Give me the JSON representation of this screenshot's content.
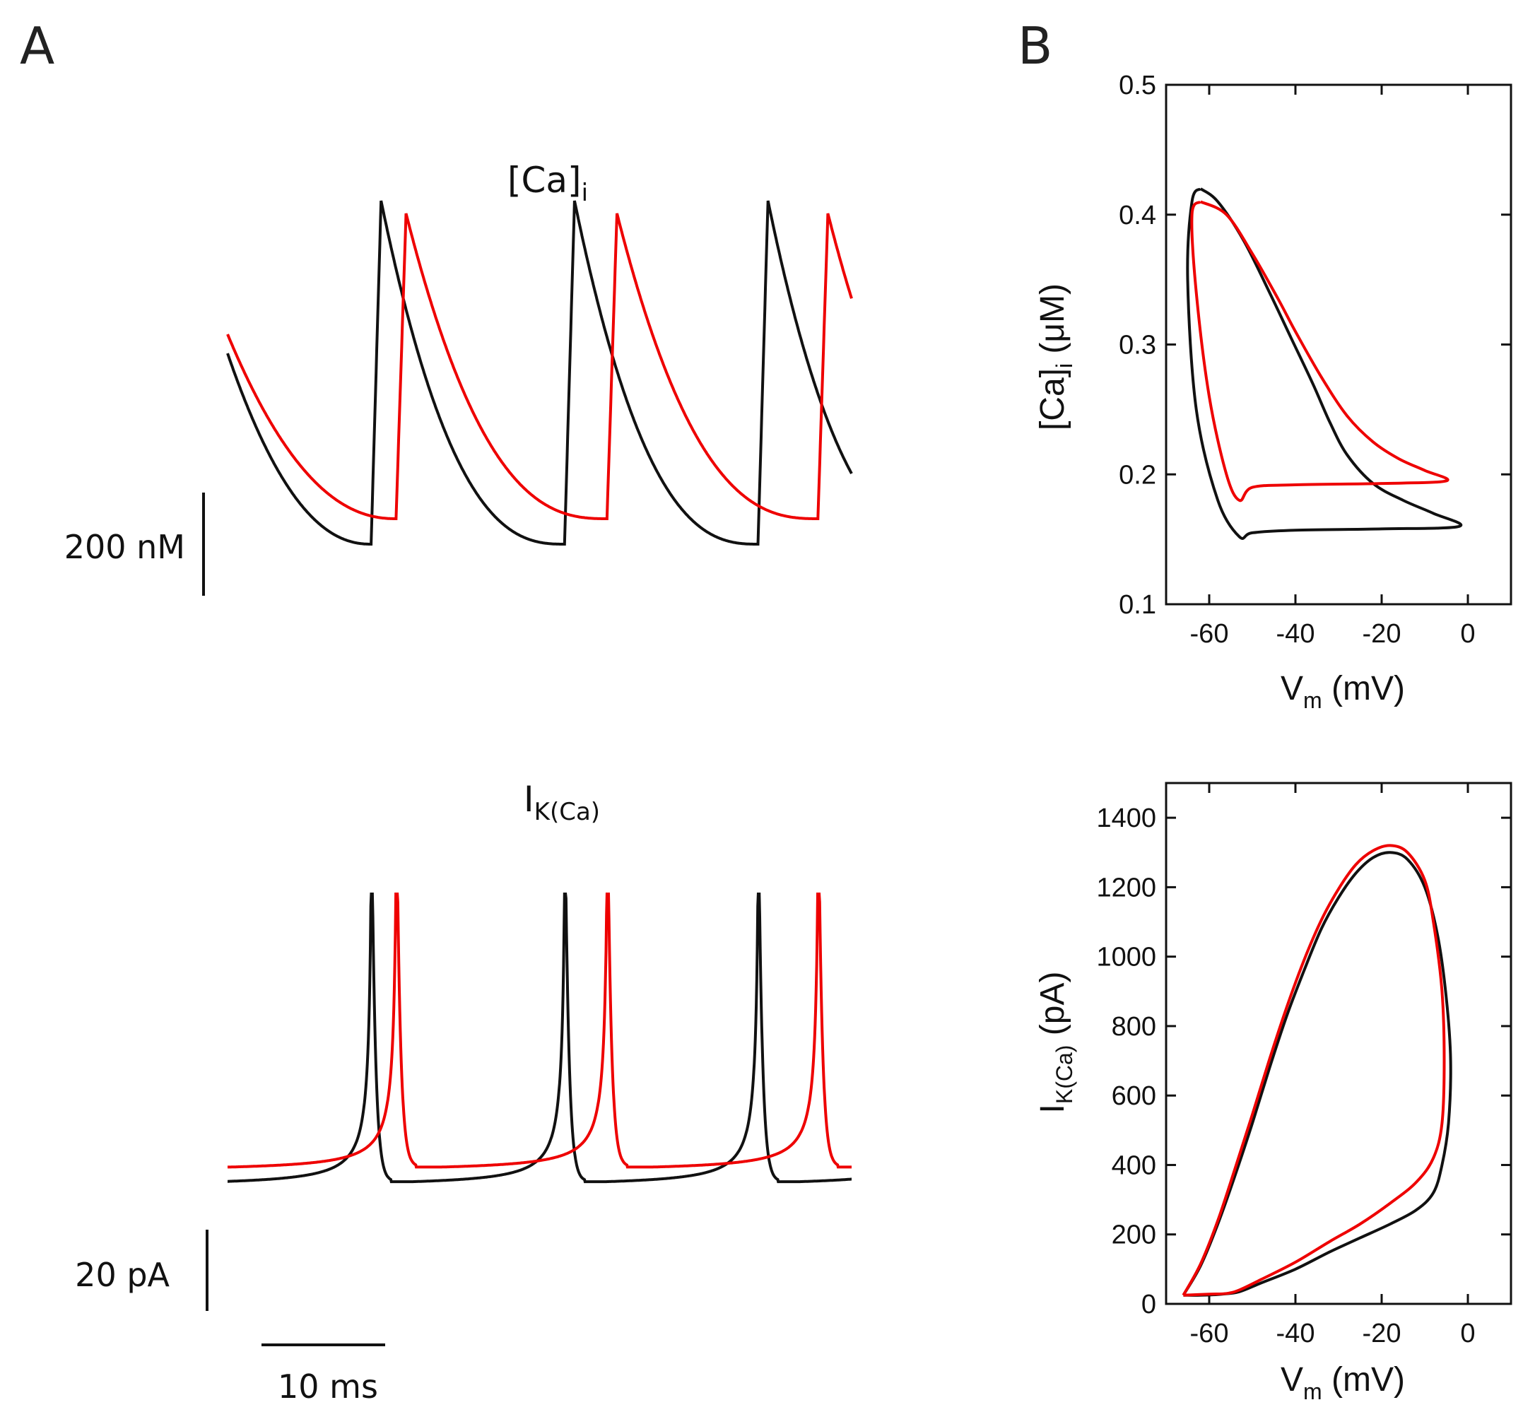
{
  "panels": {
    "a": "A",
    "b": "B"
  },
  "series_colors": {
    "black": "#111111",
    "red": "#ee0000"
  },
  "chart_data": [
    {
      "id": "ca-trace",
      "type": "line",
      "title": "[Ca]",
      "title_sub": "i",
      "scale_bar_y": "200 nM",
      "scale_bar_x": "10 ms",
      "xlim": [
        0,
        50
      ],
      "ylim_nM": [
        100,
        450
      ],
      "series": [
        {
          "name": "black",
          "color": "#111111",
          "period_ms": 15.5,
          "first_rise_ms": 11.5,
          "trough_nM": 150,
          "peak_nM": 420,
          "start_nM": 300
        },
        {
          "name": "red",
          "color": "#ee0000",
          "period_ms": 16.9,
          "first_rise_ms": 13.5,
          "trough_nM": 170,
          "peak_nM": 410,
          "start_nM": 315
        }
      ]
    },
    {
      "id": "ikca-trace",
      "type": "line",
      "title": "I",
      "title_sub": "K(Ca)",
      "scale_bar_y": "20 pA",
      "scale_bar_x": "10 ms",
      "xlim": [
        0,
        50
      ],
      "ylim_pA": [
        0,
        200
      ],
      "series": [
        {
          "name": "black",
          "color": "#111111",
          "period_ms": 15.5,
          "first_rise_ms": 11.5,
          "baseline_pA": 23,
          "start_pA": 23
        },
        {
          "name": "red",
          "color": "#ee0000",
          "period_ms": 16.9,
          "first_rise_ms": 13.5,
          "baseline_pA": 32,
          "start_pA": 36
        }
      ]
    },
    {
      "id": "ca-vs-vm",
      "type": "line",
      "xlabel": "V",
      "xlabel_sub": "m",
      "xlabel_rest": " (mV)",
      "ylabel": "[Ca]",
      "ylabel_sub": "i",
      "ylabel_rest": " (μM)",
      "xlim": [
        -70,
        10
      ],
      "ylim": [
        0.1,
        0.5
      ],
      "xticks": [
        -60,
        -40,
        -20,
        0
      ],
      "xtick_labels": [
        "-60",
        "-40",
        "-20",
        "0"
      ],
      "yticks": [
        0.1,
        0.2,
        0.3,
        0.4,
        0.5
      ],
      "ytick_labels": [
        "0.1",
        "0.2",
        "0.3",
        "0.4",
        "0.5"
      ],
      "series": [
        {
          "name": "black",
          "color": "#111111",
          "x": [
            -62,
            -58,
            -52,
            -46,
            -41,
            -36,
            -32,
            -28,
            -22,
            -15,
            -8,
            -2,
            -20,
            -40,
            -50,
            -53,
            -58,
            -63,
            -65,
            -64,
            -62
          ],
          "y": [
            0.42,
            0.41,
            0.38,
            0.34,
            0.305,
            0.27,
            0.24,
            0.215,
            0.193,
            0.18,
            0.17,
            0.16,
            0.158,
            0.157,
            0.155,
            0.152,
            0.18,
            0.25,
            0.35,
            0.41,
            0.42
          ]
        },
        {
          "name": "red",
          "color": "#ee0000",
          "x": [
            -62,
            -56,
            -50,
            -44,
            -40,
            -34,
            -28,
            -22,
            -16,
            -10,
            -5,
            -20,
            -40,
            -50,
            -53,
            -56,
            -60,
            -63,
            -64,
            -62
          ],
          "y": [
            0.41,
            0.4,
            0.37,
            0.335,
            0.31,
            0.275,
            0.245,
            0.225,
            0.212,
            0.203,
            0.195,
            0.193,
            0.192,
            0.19,
            0.18,
            0.2,
            0.26,
            0.34,
            0.4,
            0.41
          ]
        }
      ]
    },
    {
      "id": "ikca-vs-vm",
      "type": "line",
      "xlabel": "V",
      "xlabel_sub": "m",
      "xlabel_rest": " (mV)",
      "ylabel": "I",
      "ylabel_sub": "K(Ca)",
      "ylabel_rest": " (pA)",
      "xlim": [
        -70,
        10
      ],
      "ylim": [
        0,
        1500
      ],
      "xticks": [
        -60,
        -40,
        -20,
        0
      ],
      "xtick_labels": [
        "-60",
        "-40",
        "-20",
        "0"
      ],
      "yticks": [
        0,
        200,
        400,
        600,
        800,
        1000,
        1200,
        1400
      ],
      "ytick_labels": [
        "0",
        "200",
        "400",
        "600",
        "800",
        "1000",
        "1200",
        "1400"
      ],
      "series": [
        {
          "name": "black",
          "color": "#111111",
          "x": [
            -66,
            -62,
            -58,
            -54,
            -50,
            -46,
            -42,
            -38,
            -34,
            -30,
            -26,
            -22,
            -18,
            -14,
            -10,
            -7,
            -5,
            -4,
            -4.5,
            -6,
            -8,
            -12,
            -18,
            -25,
            -32,
            -40,
            -48,
            -53,
            -57,
            -62,
            -66
          ],
          "y": [
            25,
            110,
            230,
            370,
            520,
            680,
            830,
            960,
            1080,
            1170,
            1240,
            1285,
            1300,
            1280,
            1200,
            1060,
            880,
            700,
            520,
            400,
            320,
            270,
            230,
            190,
            150,
            100,
            60,
            35,
            28,
            25,
            25
          ]
        },
        {
          "name": "red",
          "color": "#ee0000",
          "x": [
            -66,
            -62,
            -58,
            -54,
            -50,
            -46,
            -42,
            -38,
            -34,
            -30,
            -26,
            -22,
            -18,
            -14,
            -10,
            -8,
            -6,
            -5.5,
            -6,
            -8,
            -12,
            -18,
            -25,
            -32,
            -40,
            -48,
            -53,
            -56,
            -60,
            -66
          ],
          "y": [
            25,
            115,
            240,
            390,
            545,
            705,
            855,
            990,
            1105,
            1195,
            1265,
            1305,
            1320,
            1300,
            1220,
            1100,
            900,
            700,
            520,
            420,
            350,
            290,
            230,
            180,
            120,
            70,
            40,
            30,
            28,
            25
          ]
        }
      ]
    }
  ]
}
